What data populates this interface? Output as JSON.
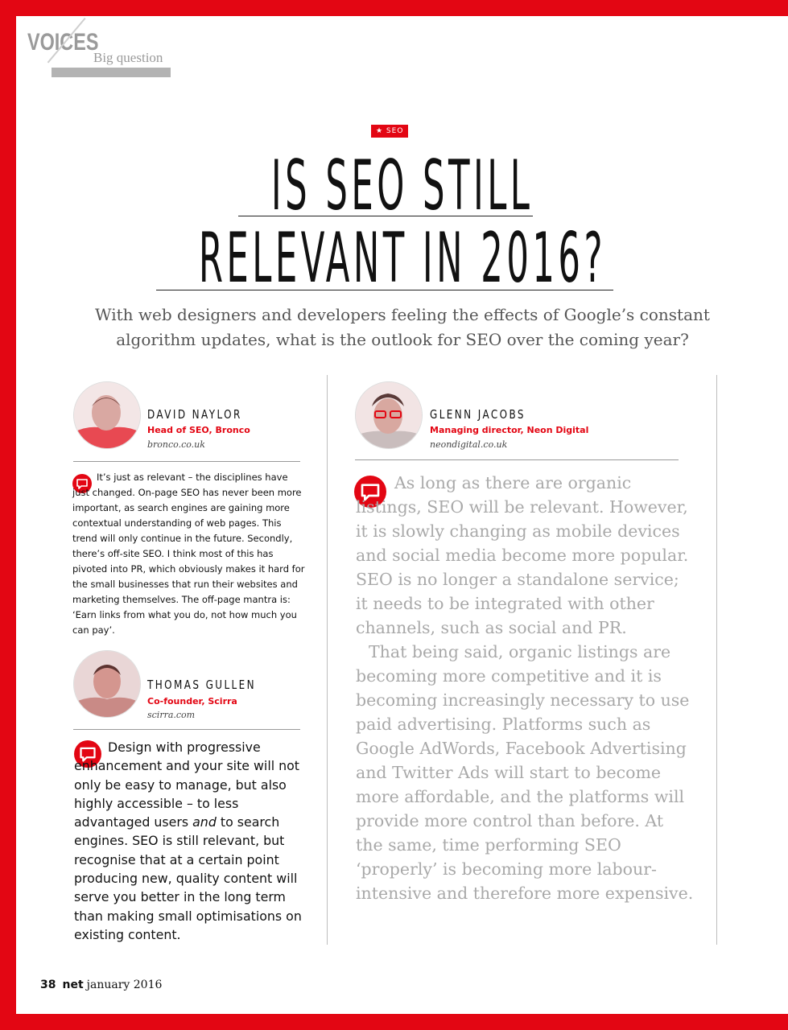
{
  "header": {
    "section": "VOICES",
    "subsection": "Big question"
  },
  "tag": "★ SEO",
  "headline": {
    "line1": "IS SEO STILL",
    "line2": "RELEVANT IN 2016?"
  },
  "standfirst": "With web designers and developers feeling the effects of Google’s constant algorithm updates, what is the outlook for SEO over the coming year?",
  "contributors": [
    {
      "name": "DAVID NAYLOR",
      "role": "Head of SEO, Bronco",
      "site": "bronco.co.uk",
      "answer": "It’s just as relevant – the disciplines have just changed. On-page SEO has never been more important, as search engines are gaining more contextual understanding of web pages. This trend will only continue in the future. Secondly, there’s off-site SEO. I think most of this has pivoted into PR, which obviously makes it hard for the small businesses that run their websites and marketing themselves. The off-page mantra is: ‘Earn links from what you do, not how much you can pay’."
    },
    {
      "name": "THOMAS GULLEN",
      "role": "Co-founder, Scirra",
      "site": "scirra.com",
      "answer_before": "Design with progressive enhancement and your site will not only be easy to manage, but also highly accessible – to less advantaged users ",
      "answer_em": "and",
      "answer_after": " to search engines. SEO is still relevant, but recognise that at a certain point producing new, quality content will serve you better in the long term than making small optimisations on existing content."
    },
    {
      "name": "GLENN JACOBS",
      "role": "Managing director, Neon Digital",
      "site": "neondigital.co.uk",
      "answer_p1": "As long as there are organic listings, SEO will be relevant. However, it is slowly changing as mobile devices and social media become more popular. SEO is no longer a standalone service; it needs to be integrated with other channels, such as social and PR.",
      "answer_p2": "That being said, organic listings are becoming more competitive and it is becoming increasingly necessary to use paid advertising. Platforms such as Google AdWords, Facebook Advertising and Twitter Ads will start to become more affordable, and the platforms will provide more control than before. At the same, time performing SEO ‘properly’ is becoming more labour-intensive and therefore more expensive."
    }
  ],
  "footer": {
    "page": "38",
    "magazine": "net",
    "issue": "january 2016"
  },
  "colors": {
    "accent": "#e30613",
    "muted": "#9a9a9a"
  },
  "icons": [
    "speech-bubble-icon",
    "star-icon"
  ]
}
